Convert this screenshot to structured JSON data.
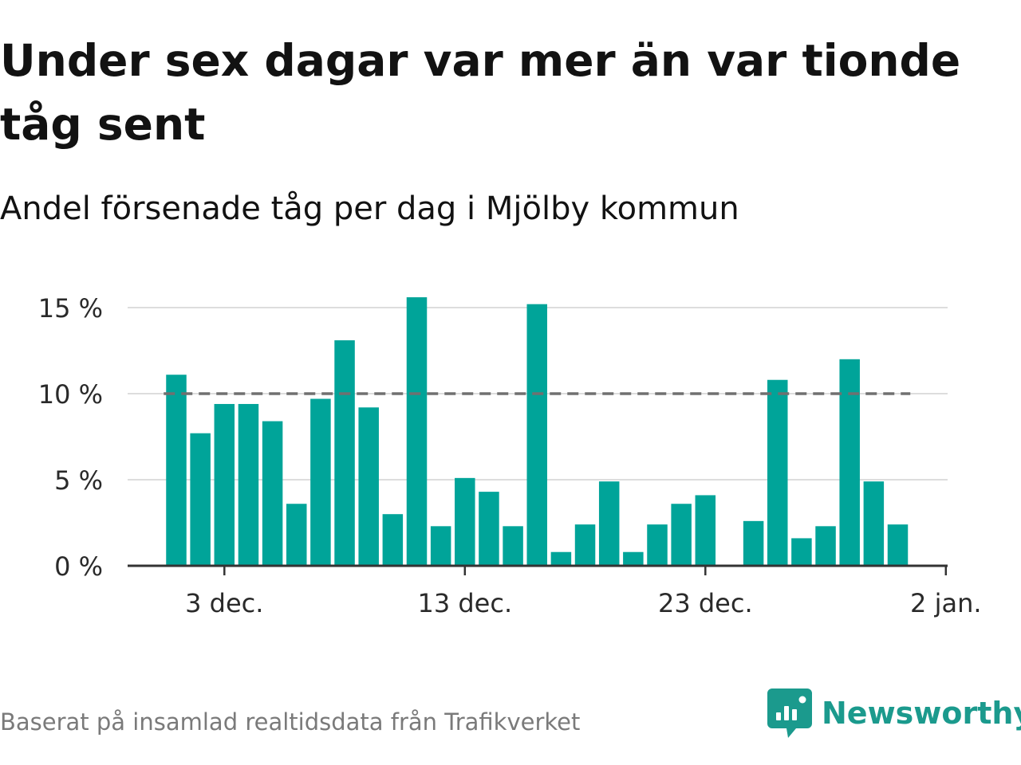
{
  "title": "Under sex dagar var mer än var tionde tåg sent",
  "subtitle": "Andel försenade tåg per dag i Mjölby kommun",
  "source": "Baserat på insamlad realtidsdata från Trafikverket",
  "brand": {
    "name": "Newsworthy",
    "icon": "newsworthy-chart-bubble-icon"
  },
  "colors": {
    "bar": "#00a499",
    "reference_line": "#707070",
    "grid": "#dddddd",
    "axis": "#333333",
    "brand": "#1b9a8d",
    "text": "#121212",
    "muted_text": "#7a7a7a"
  },
  "chart_data": {
    "type": "bar",
    "x_type": "date",
    "x": [
      "2023-12-01",
      "2023-12-02",
      "2023-12-03",
      "2023-12-04",
      "2023-12-05",
      "2023-12-06",
      "2023-12-07",
      "2023-12-08",
      "2023-12-09",
      "2023-12-10",
      "2023-12-11",
      "2023-12-12",
      "2023-12-13",
      "2023-12-14",
      "2023-12-15",
      "2023-12-16",
      "2023-12-17",
      "2023-12-18",
      "2023-12-19",
      "2023-12-20",
      "2023-12-21",
      "2023-12-22",
      "2023-12-23",
      "2023-12-24",
      "2023-12-25",
      "2023-12-26",
      "2023-12-27",
      "2023-12-28",
      "2023-12-29",
      "2023-12-30",
      "2023-12-31",
      "2024-01-01"
    ],
    "values": [
      11.1,
      7.7,
      9.4,
      9.4,
      8.4,
      3.6,
      9.7,
      13.1,
      9.2,
      3.0,
      15.6,
      2.3,
      5.1,
      4.3,
      2.3,
      15.2,
      0.8,
      2.4,
      4.9,
      0.8,
      2.4,
      3.6,
      4.1,
      null,
      2.6,
      10.8,
      1.6,
      2.3,
      12.0,
      4.9,
      2.4,
      null
    ],
    "reference_line": {
      "value": 10,
      "from": "2023-12-01",
      "to": "2023-12-31",
      "style": "dashed"
    },
    "x_ticks": [
      {
        "value": "2023-12-03",
        "label": "3 dec."
      },
      {
        "value": "2023-12-13",
        "label": "13 dec."
      },
      {
        "value": "2023-12-23",
        "label": "23 dec."
      },
      {
        "value": "2024-01-02",
        "label": "2 jan."
      }
    ],
    "y_ticks": [
      {
        "value": 0,
        "label": "0 %"
      },
      {
        "value": 5,
        "label": "5 %"
      },
      {
        "value": 10,
        "label": "10 %"
      },
      {
        "value": 15,
        "label": "15 %"
      }
    ],
    "ylim": [
      0,
      15
    ],
    "y_unit": "%",
    "grid": true,
    "legend": false
  }
}
